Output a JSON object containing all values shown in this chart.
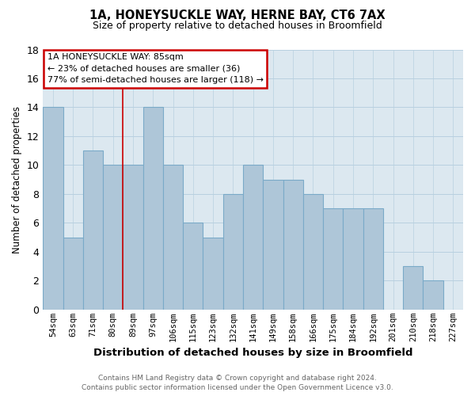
{
  "title_line1": "1A, HONEYSUCKLE WAY, HERNE BAY, CT6 7AX",
  "title_line2": "Size of property relative to detached houses in Broomfield",
  "xlabel": "Distribution of detached houses by size in Broomfield",
  "ylabel": "Number of detached properties",
  "categories": [
    "54sqm",
    "63sqm",
    "71sqm",
    "80sqm",
    "89sqm",
    "97sqm",
    "106sqm",
    "115sqm",
    "123sqm",
    "132sqm",
    "141sqm",
    "149sqm",
    "158sqm",
    "166sqm",
    "175sqm",
    "184sqm",
    "192sqm",
    "201sqm",
    "210sqm",
    "218sqm",
    "227sqm"
  ],
  "values": [
    14,
    5,
    11,
    10,
    10,
    14,
    10,
    6,
    5,
    8,
    10,
    9,
    9,
    8,
    7,
    7,
    7,
    0,
    3,
    2,
    0
  ],
  "bar_color": "#aec6d8",
  "bar_edge_color": "#7aaac8",
  "plot_bg_color": "#dce8f0",
  "background_color": "#ffffff",
  "grid_color": "#b8d0e0",
  "vline_color": "#cc0000",
  "vline_x": 3.5,
  "annotation_box_text": "1A HONEYSUCKLE WAY: 85sqm\n← 23% of detached houses are smaller (36)\n77% of semi-detached houses are larger (118) →",
  "annotation_box_edgecolor": "#cc0000",
  "annotation_box_facecolor": "#ffffff",
  "ylim": [
    0,
    18
  ],
  "yticks": [
    0,
    2,
    4,
    6,
    8,
    10,
    12,
    14,
    16,
    18
  ],
  "footer_line1": "Contains HM Land Registry data © Crown copyright and database right 2024.",
  "footer_line2": "Contains public sector information licensed under the Open Government Licence v3.0."
}
